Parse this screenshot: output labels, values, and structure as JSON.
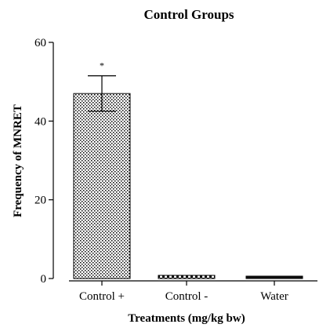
{
  "chart_data": {
    "type": "bar",
    "title": "Control Groups",
    "xlabel": "Treatments (mg/kg bw)",
    "ylabel": "Frequency of MNRET",
    "categories": [
      "Control +",
      "Control -",
      "Water"
    ],
    "values": [
      47.0,
      0.8,
      0.5
    ],
    "error_upper": [
      51.5,
      1.1,
      0.7
    ],
    "error_lower": [
      42.5,
      0.6,
      0.4
    ],
    "annotations": [
      "*",
      "",
      ""
    ],
    "bar_patterns": [
      "dots",
      "checker",
      "solid-dark"
    ],
    "ylim": [
      0,
      60
    ],
    "yticks": [
      0,
      20,
      40,
      60
    ],
    "grid": false,
    "legend": "none"
  }
}
